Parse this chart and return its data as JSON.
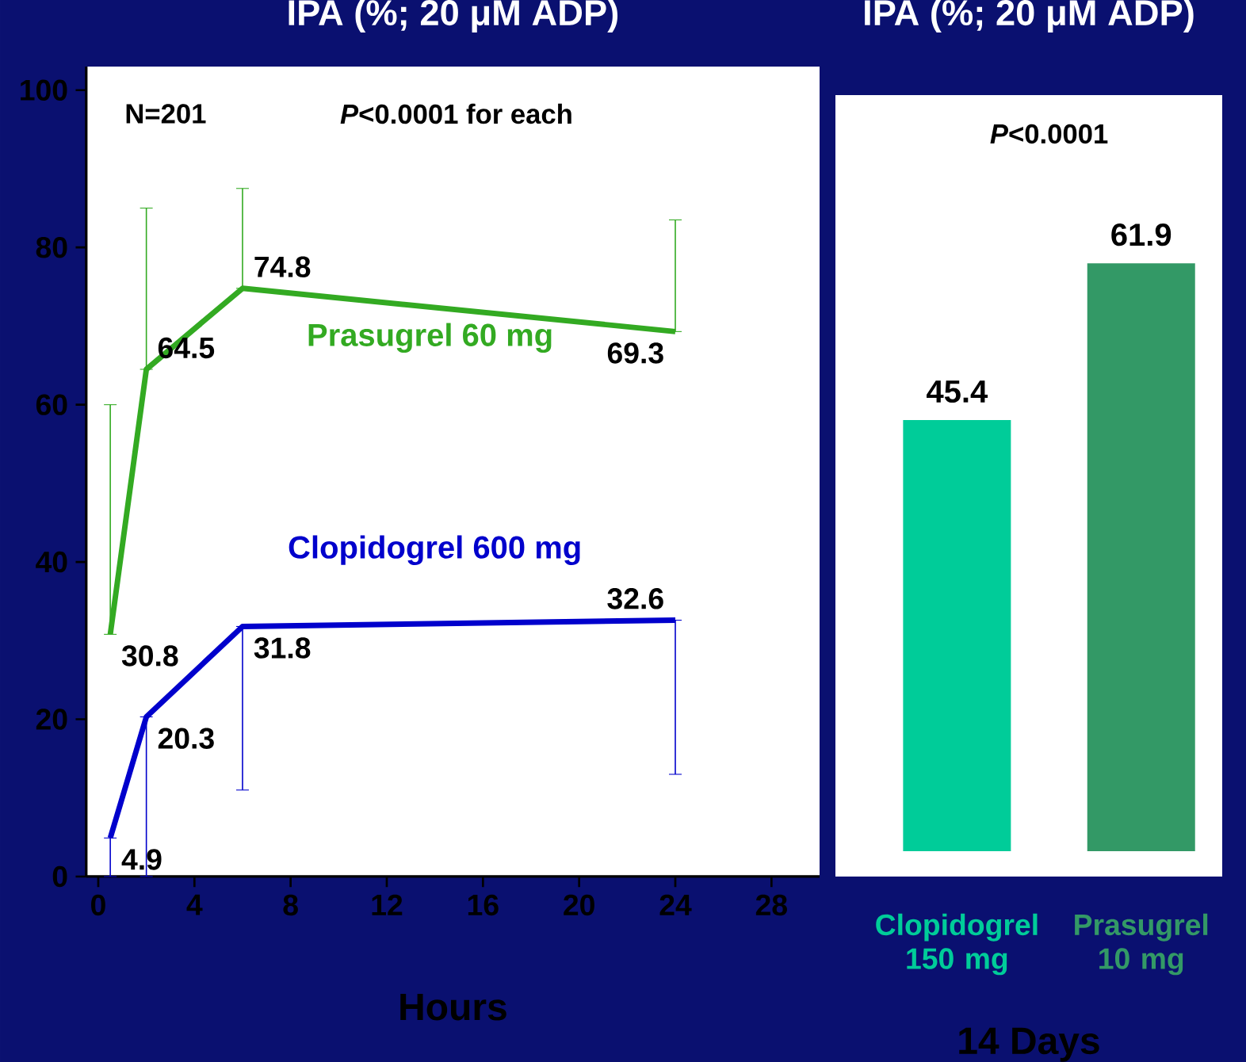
{
  "chart_data": [
    {
      "type": "line",
      "title": "IPA (%; 20 μM ADP)",
      "xlabel": "Hours",
      "x": [
        0.5,
        2,
        6,
        24
      ],
      "xlim": [
        -0.5,
        30
      ],
      "ylim": [
        0,
        103
      ],
      "xticks": [
        0,
        4,
        8,
        12,
        16,
        20,
        24,
        28
      ],
      "yticks": [
        0,
        20,
        40,
        60,
        80,
        100
      ],
      "data_labels": true,
      "annotations": [
        "N=201",
        "*P*<0.0001 for each"
      ],
      "series": [
        {
          "name": "Prasugrel 60 mg",
          "color": "#33aa22",
          "values": [
            30.8,
            64.5,
            74.8,
            69.3
          ],
          "errors": [
            [
              30.8,
              60
            ],
            [
              64.5,
              85
            ],
            [
              74.8,
              87.5
            ],
            [
              69.3,
              83.5
            ]
          ]
        },
        {
          "name": "Clopidogrel 600 mg",
          "color": "#0000cc",
          "values": [
            4.9,
            20.3,
            31.8,
            32.6
          ],
          "errors": [
            [
              0,
              4.9
            ],
            [
              0,
              20.3
            ],
            [
              11,
              31.8
            ],
            [
              13,
              32.6
            ]
          ]
        }
      ]
    },
    {
      "type": "bar",
      "title": "IPA (%; 20 μM ADP)",
      "xlabel": "14 Days",
      "categories": [
        "Clopidogrel 150 mg",
        "Prasugrel 10 mg"
      ],
      "values": [
        45.4,
        61.9
      ],
      "colors": [
        "#00cc99",
        "#339966"
      ],
      "data_labels": true,
      "tick_labels": "x",
      "annotations": [
        "*P*<0.0001"
      ]
    }
  ]
}
